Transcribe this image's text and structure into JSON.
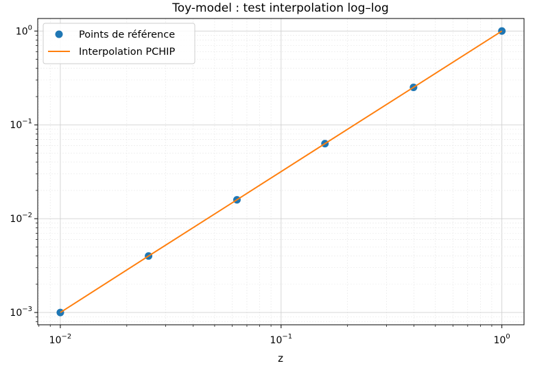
{
  "chart_data": {
    "type": "line",
    "title": "Toy-model : test interpolation log–log",
    "xlabel": "z",
    "ylabel": "",
    "x_scale": "log",
    "y_scale": "log",
    "xlim": [
      0.0079,
      1.26
    ],
    "ylim": [
      0.00074,
      1.36
    ],
    "grid": true,
    "grid_minor": true,
    "legend_position": "upper-left",
    "x_ticks": [
      {
        "base": "10",
        "exp": "−2",
        "value": 0.01
      },
      {
        "base": "10",
        "exp": "−1",
        "value": 0.1
      },
      {
        "base": "10",
        "exp": "0",
        "value": 1
      }
    ],
    "y_ticks": [
      {
        "base": "10",
        "exp": "−3",
        "value": 0.001
      },
      {
        "base": "10",
        "exp": "−2",
        "value": 0.01
      },
      {
        "base": "10",
        "exp": "−1",
        "value": 0.1
      },
      {
        "base": "10",
        "exp": "0",
        "value": 1
      }
    ],
    "series": [
      {
        "name": "Points de référence",
        "kind": "scatter",
        "color": "#1f77b4",
        "x": [
          0.01,
          0.0251,
          0.0631,
          0.158,
          0.398,
          1.0
        ],
        "y": [
          0.001,
          0.004,
          0.0159,
          0.0631,
          0.2512,
          1.0
        ]
      },
      {
        "name": "Interpolation PCHIP",
        "kind": "line",
        "color": "#ff7f0e",
        "x": [
          0.01,
          0.0251,
          0.0631,
          0.158,
          0.398,
          1.0
        ],
        "y": [
          0.001,
          0.004,
          0.0159,
          0.0631,
          0.2512,
          1.0
        ]
      }
    ]
  }
}
